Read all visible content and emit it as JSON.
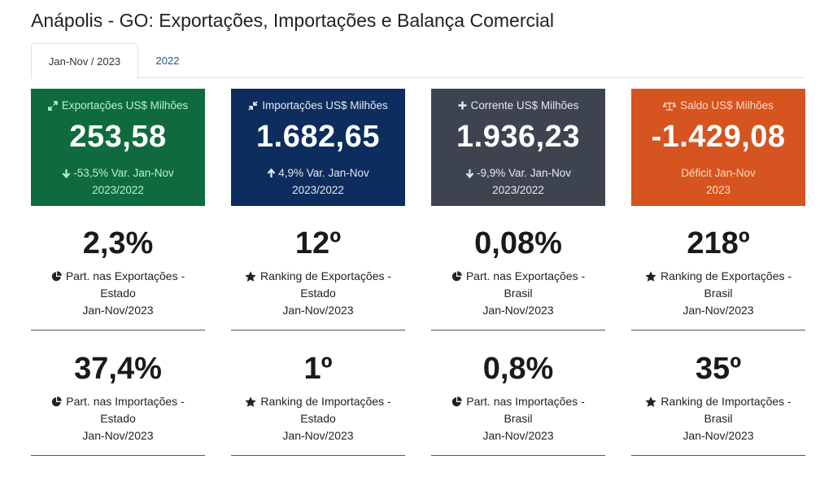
{
  "title": "Anápolis - GO: Exportações, Importações e Balança Comercial",
  "tabs": [
    {
      "label": "Jan-Nov / 2023",
      "active": true
    },
    {
      "label": "2022",
      "active": false
    }
  ],
  "kpis": [
    {
      "icon": "expand-arrows-icon",
      "label": "Exportações US$ Milhões",
      "value": "253,58",
      "var_line1": "-53,5% Var. Jan-Nov",
      "var_line2": "2023/2022",
      "trend": "down",
      "color": "#0f6b3e"
    },
    {
      "icon": "compress-arrows-icon",
      "label": "Importações US$ Milhões",
      "value": "1.682,65",
      "var_line1": "4,9% Var. Jan-Nov",
      "var_line2": "2023/2022",
      "trend": "up",
      "color": "#0c2d5e"
    },
    {
      "icon": "plus-icon",
      "label": "Corrente US$ Milhões",
      "value": "1.936,23",
      "var_line1": "-9,9% Var. Jan-Nov",
      "var_line2": "2023/2022",
      "trend": "down",
      "color": "#3e4350"
    },
    {
      "icon": "balance-scale-icon",
      "label": "Saldo US$ Milhões",
      "value": "-1.429,08",
      "var_line1": "Déficit Jan-Nov",
      "var_line2": "2023",
      "trend": "none",
      "color": "#d5541f"
    }
  ],
  "stats_row1": [
    {
      "value": "2,3%",
      "icon": "pie-chart-icon",
      "line1": "Part. nas Exportações -",
      "line2": "Estado",
      "line3": "Jan-Nov/2023"
    },
    {
      "value": "12º",
      "icon": "star-icon",
      "line1": "Ranking de Exportações -",
      "line2": "Estado",
      "line3": "Jan-Nov/2023"
    },
    {
      "value": "0,08%",
      "icon": "pie-chart-icon",
      "line1": "Part. nas Exportações -",
      "line2": "Brasil",
      "line3": "Jan-Nov/2023"
    },
    {
      "value": "218º",
      "icon": "star-icon",
      "line1": "Ranking de Exportações -",
      "line2": "Brasil",
      "line3": "Jan-Nov/2023"
    }
  ],
  "stats_row2": [
    {
      "value": "37,4%",
      "icon": "pie-chart-icon",
      "line1": "Part. nas Importações -",
      "line2": "Estado",
      "line3": "Jan-Nov/2023"
    },
    {
      "value": "1º",
      "icon": "star-icon",
      "line1": "Ranking de Importações -",
      "line2": "Estado",
      "line3": "Jan-Nov/2023"
    },
    {
      "value": "0,8%",
      "icon": "pie-chart-icon",
      "line1": "Part. nas Importações -",
      "line2": "Brasil",
      "line3": "Jan-Nov/2023"
    },
    {
      "value": "35º",
      "icon": "star-icon",
      "line1": "Ranking de Importações -",
      "line2": "Brasil",
      "line3": "Jan-Nov/2023"
    }
  ]
}
